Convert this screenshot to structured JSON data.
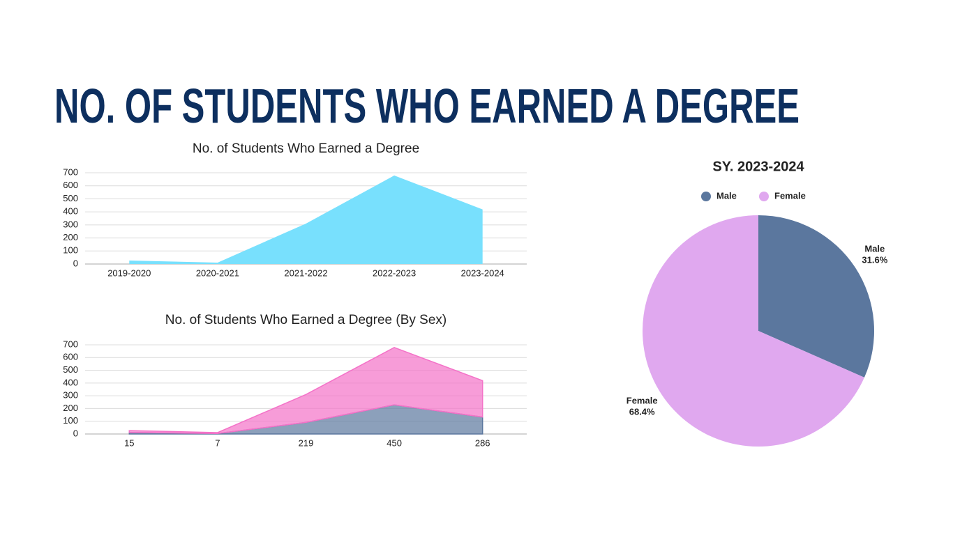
{
  "title": "NO. OF STUDENTS WHO EARNED A DEGREE",
  "chart_data": [
    {
      "type": "area",
      "title": "No. of Students Who Earned a Degree",
      "categories": [
        "2019-2020",
        "2020-2021",
        "2021-2022",
        "2022-2023",
        "2023-2024"
      ],
      "values": [
        27,
        11,
        310,
        679,
        419
      ],
      "color": "#78e0fd",
      "ylim": [
        0,
        700
      ],
      "yticks": [
        0,
        100,
        200,
        300,
        400,
        500,
        600,
        700
      ],
      "grid": true
    },
    {
      "type": "area",
      "title": "No. of Students Who Earned a Degree (By Sex)",
      "categories": [
        "15",
        "7",
        "219",
        "450",
        "286"
      ],
      "stacked": true,
      "series": [
        {
          "color": "#5b779e",
          "values": [
            12,
            4,
            91,
            229,
            133
          ]
        },
        {
          "color": "#f472c8",
          "values": [
            15,
            7,
            219,
            450,
            286
          ]
        }
      ],
      "ylim": [
        0,
        700
      ],
      "yticks": [
        0,
        100,
        200,
        300,
        400,
        500,
        600,
        700
      ],
      "grid": true
    },
    {
      "type": "pie",
      "title": "SY. 2023-2024",
      "categories": [
        "Male",
        "Female"
      ],
      "values": [
        31.6,
        68.4
      ],
      "value_labels": [
        "31.6%",
        "68.4%"
      ],
      "colors": [
        "#5b779e",
        "#e0a8ef"
      ],
      "legend": "top"
    }
  ]
}
